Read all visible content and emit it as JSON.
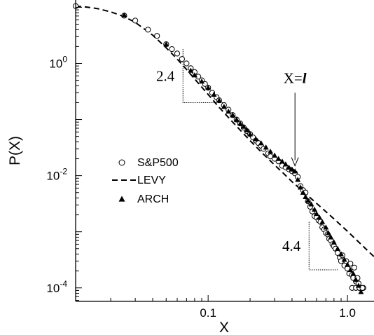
{
  "chart_data": {
    "type": "scatter",
    "xlabel": "X",
    "ylabel": "P(X)",
    "xscale": "log",
    "yscale": "log",
    "xlim": [
      0.0112,
      1.55
    ],
    "ylim": [
      5.75e-05,
      13.5
    ],
    "x_ticks": [
      {
        "value": 0.1,
        "label": "0.1"
      },
      {
        "value": 1.0,
        "label": "1.0"
      }
    ],
    "y_ticks": [
      {
        "value": 1,
        "base": "10",
        "exp": "0"
      },
      {
        "value": 0.01,
        "base": "10",
        "exp": "-2"
      },
      {
        "value": 0.0001,
        "base": "10",
        "exp": "-4"
      }
    ],
    "legend": {
      "position": "middle-left",
      "entries": [
        {
          "label": "S&P500",
          "marker": "open-circle"
        },
        {
          "label": "LEVY",
          "marker": "dashed-line"
        },
        {
          "label": "ARCH",
          "marker": "filled-triangle"
        }
      ]
    },
    "annotations": {
      "slope_left": {
        "label": "2.4",
        "corner_x": 0.066,
        "top_y": 1.8,
        "bottom_y": 0.2,
        "end_x": 0.135
      },
      "slope_right": {
        "label": "4.4",
        "corner_x": 0.53,
        "top_y": 0.0015,
        "bottom_y": 0.00021,
        "end_x": 0.85
      },
      "crossover": {
        "label_prefix": "X=",
        "label_italic": "l",
        "x": 0.42,
        "y_from": 0.3,
        "y_to": 0.015
      }
    },
    "series": [
      {
        "name": "LEVY",
        "kind": "line",
        "x": [
          0.0112,
          0.013,
          0.016,
          0.02,
          0.025,
          0.03,
          0.04,
          0.05,
          0.06,
          0.07,
          0.08,
          0.1,
          0.12,
          0.15,
          0.2,
          0.25,
          0.3,
          0.35,
          0.4,
          0.5,
          0.6,
          0.8,
          1.0,
          1.2,
          1.55
        ],
        "y": [
          10.5,
          10.2,
          9.5,
          8.3,
          6.8,
          5.4,
          3.2,
          1.9,
          1.2,
          0.78,
          0.53,
          0.28,
          0.165,
          0.09,
          0.042,
          0.024,
          0.0155,
          0.0108,
          0.0078,
          0.0048,
          0.0032,
          0.0017,
          0.00102,
          0.00066,
          0.00036
        ]
      },
      {
        "name": "S&P500",
        "kind": "open-circle",
        "x": [
          0.0112,
          0.025,
          0.03,
          0.037,
          0.043,
          0.05,
          0.055,
          0.06,
          0.065,
          0.07,
          0.075,
          0.08,
          0.085,
          0.09,
          0.095,
          0.1,
          0.107,
          0.115,
          0.12,
          0.13,
          0.14,
          0.15,
          0.16,
          0.17,
          0.18,
          0.19,
          0.2,
          0.21,
          0.22,
          0.23,
          0.24,
          0.25,
          0.27,
          0.28,
          0.3,
          0.32,
          0.34,
          0.36,
          0.38,
          0.4,
          0.42,
          0.44,
          0.46,
          0.48,
          0.5,
          0.52,
          0.54,
          0.56,
          0.58,
          0.6,
          0.62,
          0.64,
          0.66,
          0.68,
          0.7,
          0.72,
          0.74,
          0.76,
          0.78,
          0.8,
          0.82,
          0.85,
          0.88,
          0.9,
          0.92,
          0.95,
          0.98,
          1.0,
          1.03,
          1.05,
          1.08,
          1.1,
          1.12,
          1.15,
          1.18,
          1.2,
          1.22,
          1.25,
          1.28,
          1.3,
          1.08,
          1.15,
          1.22,
          1.28
        ],
        "y": [
          10.5,
          7.1,
          5.8,
          4.0,
          3.1,
          2.2,
          1.8,
          1.5,
          1.2,
          1.0,
          0.82,
          0.7,
          0.58,
          0.5,
          0.43,
          0.37,
          0.3,
          0.25,
          0.22,
          0.18,
          0.15,
          0.12,
          0.1,
          0.085,
          0.072,
          0.062,
          0.055,
          0.048,
          0.042,
          0.038,
          0.034,
          0.03,
          0.025,
          0.022,
          0.02,
          0.018,
          0.015,
          0.014,
          0.013,
          0.012,
          0.011,
          0.0095,
          0.0065,
          0.0055,
          0.005,
          0.0035,
          0.0028,
          0.0023,
          0.0019,
          0.0018,
          0.0016,
          0.0015,
          0.0012,
          0.0011,
          0.00095,
          0.0009,
          0.00075,
          0.0007,
          0.0006,
          0.00055,
          0.0005,
          0.00042,
          0.00035,
          0.0003,
          0.00038,
          0.00025,
          0.0003,
          0.00022,
          0.00018,
          0.00027,
          0.00017,
          0.00015,
          0.00023,
          0.00013,
          0.00015,
          0.00012,
          0.0001,
          0.0001,
          0.0001,
          0.0001,
          0.0001,
          0.0001,
          0.0001,
          0.0001
        ]
      },
      {
        "name": "ARCH",
        "kind": "filled-triangle",
        "x": [
          0.025,
          0.05,
          0.075,
          0.08,
          0.09,
          0.1,
          0.11,
          0.12,
          0.13,
          0.14,
          0.15,
          0.16,
          0.17,
          0.18,
          0.19,
          0.2,
          0.22,
          0.24,
          0.26,
          0.28,
          0.3,
          0.32,
          0.34,
          0.36,
          0.38,
          0.4,
          0.42,
          0.44,
          0.46,
          0.48,
          0.5,
          0.52,
          0.55,
          0.58,
          0.6,
          0.63,
          0.66,
          0.7,
          0.73,
          0.76,
          0.8,
          0.85,
          0.9,
          0.95,
          1.0,
          1.05,
          1.1,
          1.15,
          1.2,
          1.25
        ],
        "y": [
          7.3,
          2.2,
          0.75,
          0.62,
          0.48,
          0.37,
          0.28,
          0.22,
          0.17,
          0.14,
          0.12,
          0.1,
          0.085,
          0.075,
          0.065,
          0.055,
          0.045,
          0.038,
          0.032,
          0.027,
          0.023,
          0.02,
          0.018,
          0.016,
          0.014,
          0.013,
          0.012,
          0.0085,
          0.0062,
          0.005,
          0.0042,
          0.0036,
          0.0031,
          0.0025,
          0.0021,
          0.0018,
          0.0015,
          0.0012,
          0.00095,
          0.0008,
          0.00065,
          0.0005,
          0.0004,
          0.00032,
          0.00026,
          0.00021,
          0.00018,
          0.00014,
          0.00011,
          8.5e-05
        ]
      }
    ]
  }
}
